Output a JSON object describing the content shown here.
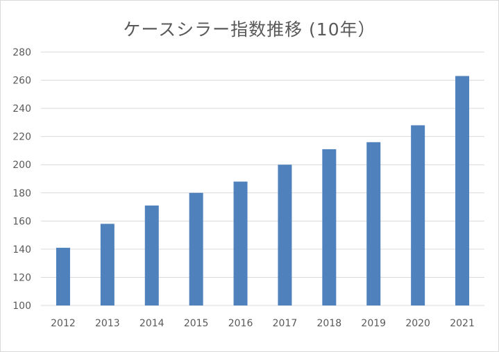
{
  "chart_data": {
    "type": "bar",
    "title": "ケースシラー指数推移 (10年）",
    "xlabel": "",
    "ylabel": "",
    "categories": [
      "2012",
      "2013",
      "2014",
      "2015",
      "2016",
      "2017",
      "2018",
      "2019",
      "2020",
      "2021"
    ],
    "values": [
      141,
      158,
      171,
      180,
      188,
      200,
      211,
      216,
      228,
      263
    ],
    "ylim": [
      100,
      280
    ],
    "yticks": [
      100,
      120,
      140,
      160,
      180,
      200,
      220,
      240,
      260,
      280
    ],
    "grid": true,
    "legend": "none",
    "bar_color": "#4f81bd",
    "grid_color": "#d9d9d9"
  }
}
